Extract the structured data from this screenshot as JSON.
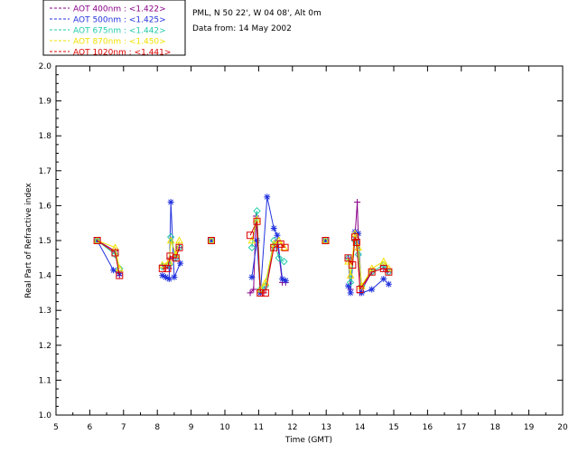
{
  "chart_data": {
    "type": "scatter",
    "title_lines": [
      "PML, N 50 22', W 04 08', Alt 0m",
      "Data from: 14 May 2002"
    ],
    "xlabel": "Time (GMT)",
    "ylabel": "Real Part of Refractive index",
    "xlim": [
      5,
      20
    ],
    "ylim": [
      1.0,
      2.0
    ],
    "x_ticks": [
      5,
      6,
      7,
      8,
      9,
      10,
      11,
      12,
      13,
      14,
      15,
      16,
      17,
      18,
      19,
      20
    ],
    "x_tick_labels": [
      "5",
      "6",
      "7",
      "8",
      "9",
      "10",
      "11",
      "12",
      "13",
      "14",
      "15",
      "16",
      "17",
      "18",
      "19",
      "20"
    ],
    "y_ticks": [
      1.0,
      1.1,
      1.2,
      1.3,
      1.4,
      1.5,
      1.6,
      1.7,
      1.8,
      1.9,
      2.0
    ],
    "y_tick_labels": [
      "1.0",
      "1.1",
      "1.2",
      "1.3",
      "1.4",
      "1.5",
      "1.6",
      "1.7",
      "1.8",
      "1.9",
      "2.0"
    ],
    "legend_position": "top-left",
    "series": [
      {
        "name": "AOT  400nm : <1.422>",
        "color": "#8a008a",
        "marker": "plus",
        "points": [
          [
            6.22,
            1.5
          ],
          [
            6.75,
            1.47
          ],
          [
            6.88,
            1.4
          ],
          [
            8.15,
            1.43
          ],
          [
            8.35,
            1.42
          ],
          [
            8.38,
            1.45
          ],
          [
            8.55,
            1.45
          ],
          [
            8.65,
            1.48
          ],
          [
            9.6,
            1.5
          ],
          [
            10.75,
            1.35
          ],
          [
            10.85,
            1.36
          ],
          [
            10.92,
            1.57
          ],
          [
            11.05,
            1.35
          ],
          [
            11.15,
            1.35
          ],
          [
            11.45,
            1.48
          ],
          [
            11.55,
            1.5
          ],
          [
            11.7,
            1.38
          ],
          [
            11.8,
            1.38
          ],
          [
            12.98,
            1.5
          ],
          [
            13.65,
            1.45
          ],
          [
            13.72,
            1.36
          ],
          [
            13.85,
            1.51
          ],
          [
            13.92,
            1.61
          ],
          [
            14.0,
            1.35
          ],
          [
            14.35,
            1.41
          ],
          [
            14.7,
            1.42
          ],
          [
            14.82,
            1.41
          ]
        ]
      },
      {
        "name": "AOT  500nm : <1.425>",
        "color": "#2233dd",
        "marker": "asterisk",
        "points": [
          [
            6.22,
            1.5
          ],
          [
            6.7,
            1.415
          ],
          [
            6.88,
            1.405
          ],
          [
            8.15,
            1.4
          ],
          [
            8.25,
            1.395
          ],
          [
            8.35,
            1.39
          ],
          [
            8.4,
            1.61
          ],
          [
            8.5,
            1.395
          ],
          [
            8.68,
            1.435
          ],
          [
            9.6,
            1.5
          ],
          [
            10.8,
            1.395
          ],
          [
            10.95,
            1.5
          ],
          [
            11.05,
            1.35
          ],
          [
            11.25,
            1.625
          ],
          [
            11.45,
            1.535
          ],
          [
            11.55,
            1.515
          ],
          [
            11.7,
            1.39
          ],
          [
            11.8,
            1.385
          ],
          [
            12.98,
            1.5
          ],
          [
            13.65,
            1.37
          ],
          [
            13.72,
            1.35
          ],
          [
            13.85,
            1.525
          ],
          [
            13.95,
            1.52
          ],
          [
            14.05,
            1.35
          ],
          [
            14.35,
            1.36
          ],
          [
            14.7,
            1.39
          ],
          [
            14.85,
            1.375
          ]
        ]
      },
      {
        "name": "AOT  675nm : <1.442>",
        "color": "#22ccaa",
        "marker": "diamond",
        "points": [
          [
            6.22,
            1.5
          ],
          [
            6.75,
            1.46
          ],
          [
            6.88,
            1.42
          ],
          [
            8.15,
            1.425
          ],
          [
            8.35,
            1.43
          ],
          [
            8.4,
            1.51
          ],
          [
            8.55,
            1.45
          ],
          [
            8.65,
            1.48
          ],
          [
            9.6,
            1.5
          ],
          [
            10.8,
            1.48
          ],
          [
            10.95,
            1.585
          ],
          [
            11.05,
            1.36
          ],
          [
            11.2,
            1.37
          ],
          [
            11.45,
            1.5
          ],
          [
            11.6,
            1.45
          ],
          [
            11.75,
            1.44
          ],
          [
            12.98,
            1.5
          ],
          [
            13.65,
            1.45
          ],
          [
            13.72,
            1.38
          ],
          [
            13.85,
            1.5
          ],
          [
            13.95,
            1.46
          ],
          [
            14.05,
            1.37
          ],
          [
            14.35,
            1.41
          ],
          [
            14.7,
            1.43
          ],
          [
            14.85,
            1.41
          ]
        ]
      },
      {
        "name": "AOT  870nm : <1.450>",
        "color": "#f0e000",
        "marker": "triangle",
        "points": [
          [
            6.22,
            1.5
          ],
          [
            6.75,
            1.48
          ],
          [
            6.88,
            1.42
          ],
          [
            8.15,
            1.43
          ],
          [
            8.35,
            1.44
          ],
          [
            8.4,
            1.5
          ],
          [
            8.55,
            1.46
          ],
          [
            8.65,
            1.5
          ],
          [
            9.6,
            1.5
          ],
          [
            10.8,
            1.5
          ],
          [
            10.95,
            1.56
          ],
          [
            11.05,
            1.36
          ],
          [
            11.2,
            1.38
          ],
          [
            11.45,
            1.49
          ],
          [
            11.6,
            1.5
          ],
          [
            11.75,
            1.48
          ],
          [
            12.98,
            1.5
          ],
          [
            13.65,
            1.44
          ],
          [
            13.72,
            1.4
          ],
          [
            13.85,
            1.52
          ],
          [
            13.95,
            1.48
          ],
          [
            14.05,
            1.37
          ],
          [
            14.35,
            1.42
          ],
          [
            14.7,
            1.44
          ],
          [
            14.85,
            1.42
          ]
        ]
      },
      {
        "name": "AOT 1020nm : <1.441>",
        "color": "#dd0000",
        "marker": "square",
        "points": [
          [
            6.22,
            1.5
          ],
          [
            6.75,
            1.465
          ],
          [
            6.88,
            1.4
          ],
          [
            8.15,
            1.42
          ],
          [
            8.3,
            1.42
          ],
          [
            8.38,
            1.455
          ],
          [
            8.55,
            1.45
          ],
          [
            8.65,
            1.48
          ],
          [
            9.6,
            1.5
          ],
          [
            10.75,
            1.515
          ],
          [
            10.95,
            1.555
          ],
          [
            11.05,
            1.35
          ],
          [
            11.2,
            1.35
          ],
          [
            11.45,
            1.48
          ],
          [
            11.65,
            1.49
          ],
          [
            11.78,
            1.48
          ],
          [
            12.98,
            1.5
          ],
          [
            13.65,
            1.45
          ],
          [
            13.78,
            1.43
          ],
          [
            13.85,
            1.51
          ],
          [
            13.9,
            1.495
          ],
          [
            14.0,
            1.36
          ],
          [
            14.35,
            1.41
          ],
          [
            14.7,
            1.42
          ],
          [
            14.85,
            1.41
          ]
        ]
      }
    ]
  }
}
